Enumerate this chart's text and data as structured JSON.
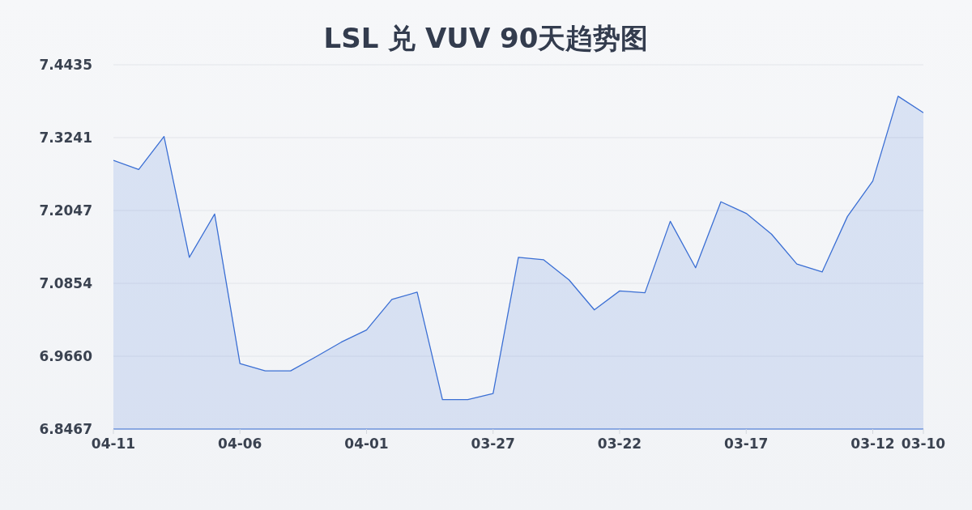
{
  "chart_data": {
    "type": "area",
    "title": "LSL 兑 VUV 90天趋势图",
    "categories": [
      "04-11",
      null,
      null,
      null,
      null,
      "04-06",
      null,
      null,
      null,
      null,
      "04-01",
      null,
      null,
      null,
      null,
      "03-27",
      null,
      null,
      null,
      null,
      "03-22",
      null,
      null,
      null,
      null,
      "03-17",
      null,
      null,
      null,
      null,
      "03-12",
      null,
      "03-10"
    ],
    "series": [
      {
        "color": "#3b6fd4",
        "values": [
          7.287,
          7.272,
          7.326,
          7.128,
          7.199,
          6.954,
          6.942,
          6.942,
          6.965,
          6.989,
          7.009,
          7.059,
          7.071,
          6.895,
          6.895,
          6.905,
          7.128,
          7.124,
          7.091,
          7.042,
          7.073,
          7.07,
          7.187,
          7.111,
          7.219,
          7.2,
          7.166,
          7.117,
          7.104,
          7.195,
          7.253,
          7.392,
          7.365
        ]
      }
    ],
    "ylim": [
      6.8467,
      7.4435
    ],
    "yticks": [
      6.8467,
      {
        "value": 6.966,
        "label": "6.9660"
      },
      7.0854,
      7.2047,
      7.3241,
      7.4435
    ],
    "grid": "y",
    "marker": "none"
  }
}
